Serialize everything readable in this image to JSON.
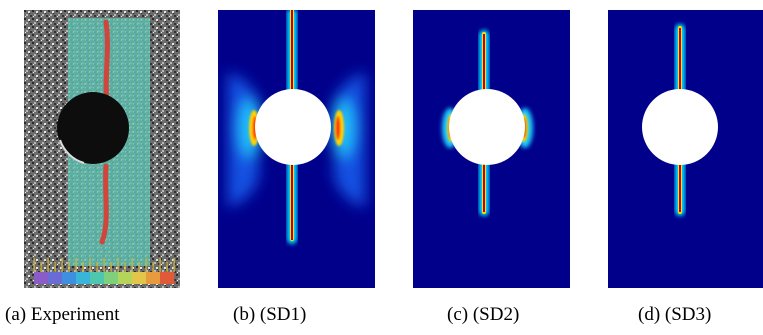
{
  "figure": {
    "panels": [
      {
        "id": "a",
        "caption": "(a) Experiment",
        "kind": "photograph"
      },
      {
        "id": "b",
        "caption": "(b) (SD1)",
        "kind": "phase-field simulation"
      },
      {
        "id": "c",
        "caption": "(c) (SD2)",
        "kind": "phase-field simulation"
      },
      {
        "id": "d",
        "caption": "(d) (SD3)",
        "kind": "phase-field simulation"
      }
    ],
    "colormap": [
      "#00008b",
      "#0000ff",
      "#00c8ff",
      "#00ff80",
      "#ffff00",
      "#ff8000",
      "#b00000"
    ],
    "legend_colors": [
      "#8a5cc7",
      "#6a6cd6",
      "#3f8fe0",
      "#38b5d8",
      "#4fc7b0",
      "#7fd07a",
      "#b5d45a",
      "#e2c64a",
      "#e89a3f",
      "#e05a3a"
    ]
  }
}
